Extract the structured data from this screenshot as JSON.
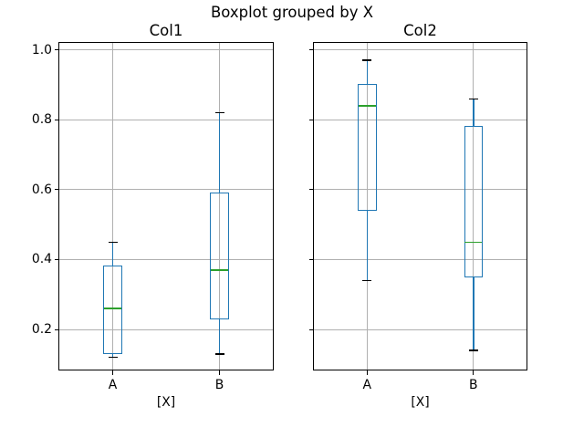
{
  "chart_data": {
    "type": "boxplot",
    "suptitle": "Boxplot grouped by X",
    "grid": true,
    "legend_shown": false,
    "ylim": [
      0.085,
      1.02
    ],
    "yticks": [
      0.2,
      0.4,
      0.6,
      0.8,
      1.0
    ],
    "ytick_labels": [
      "0.2",
      "0.4",
      "0.6",
      "0.8",
      "1.0"
    ],
    "subplots": [
      {
        "title": "Col1",
        "xlabel": "[X]",
        "categories": [
          "A",
          "B"
        ],
        "boxes": [
          {
            "category": "A",
            "whislo": 0.12,
            "q1": 0.13,
            "med": 0.26,
            "q3": 0.38,
            "whishi": 0.45
          },
          {
            "category": "B",
            "whislo": 0.13,
            "q1": 0.23,
            "med": 0.37,
            "q3": 0.59,
            "whishi": 0.82
          }
        ]
      },
      {
        "title": "Col2",
        "xlabel": "[X]",
        "categories": [
          "A",
          "B"
        ],
        "boxes": [
          {
            "category": "A",
            "whislo": 0.34,
            "q1": 0.54,
            "med": 0.84,
            "q3": 0.9,
            "whishi": 0.97
          },
          {
            "category": "B",
            "whislo": 0.14,
            "q1": 0.35,
            "med": 0.45,
            "q3": 0.78,
            "whishi": 0.86
          }
        ]
      }
    ],
    "colors": {
      "box": "#1f77b4",
      "whisker": "#1f77b4",
      "cap": "#000000",
      "median": "#2ca02c",
      "grid": "#b0b0b0",
      "spine": "#000000",
      "background": "#ffffff",
      "text": "#000000"
    }
  }
}
